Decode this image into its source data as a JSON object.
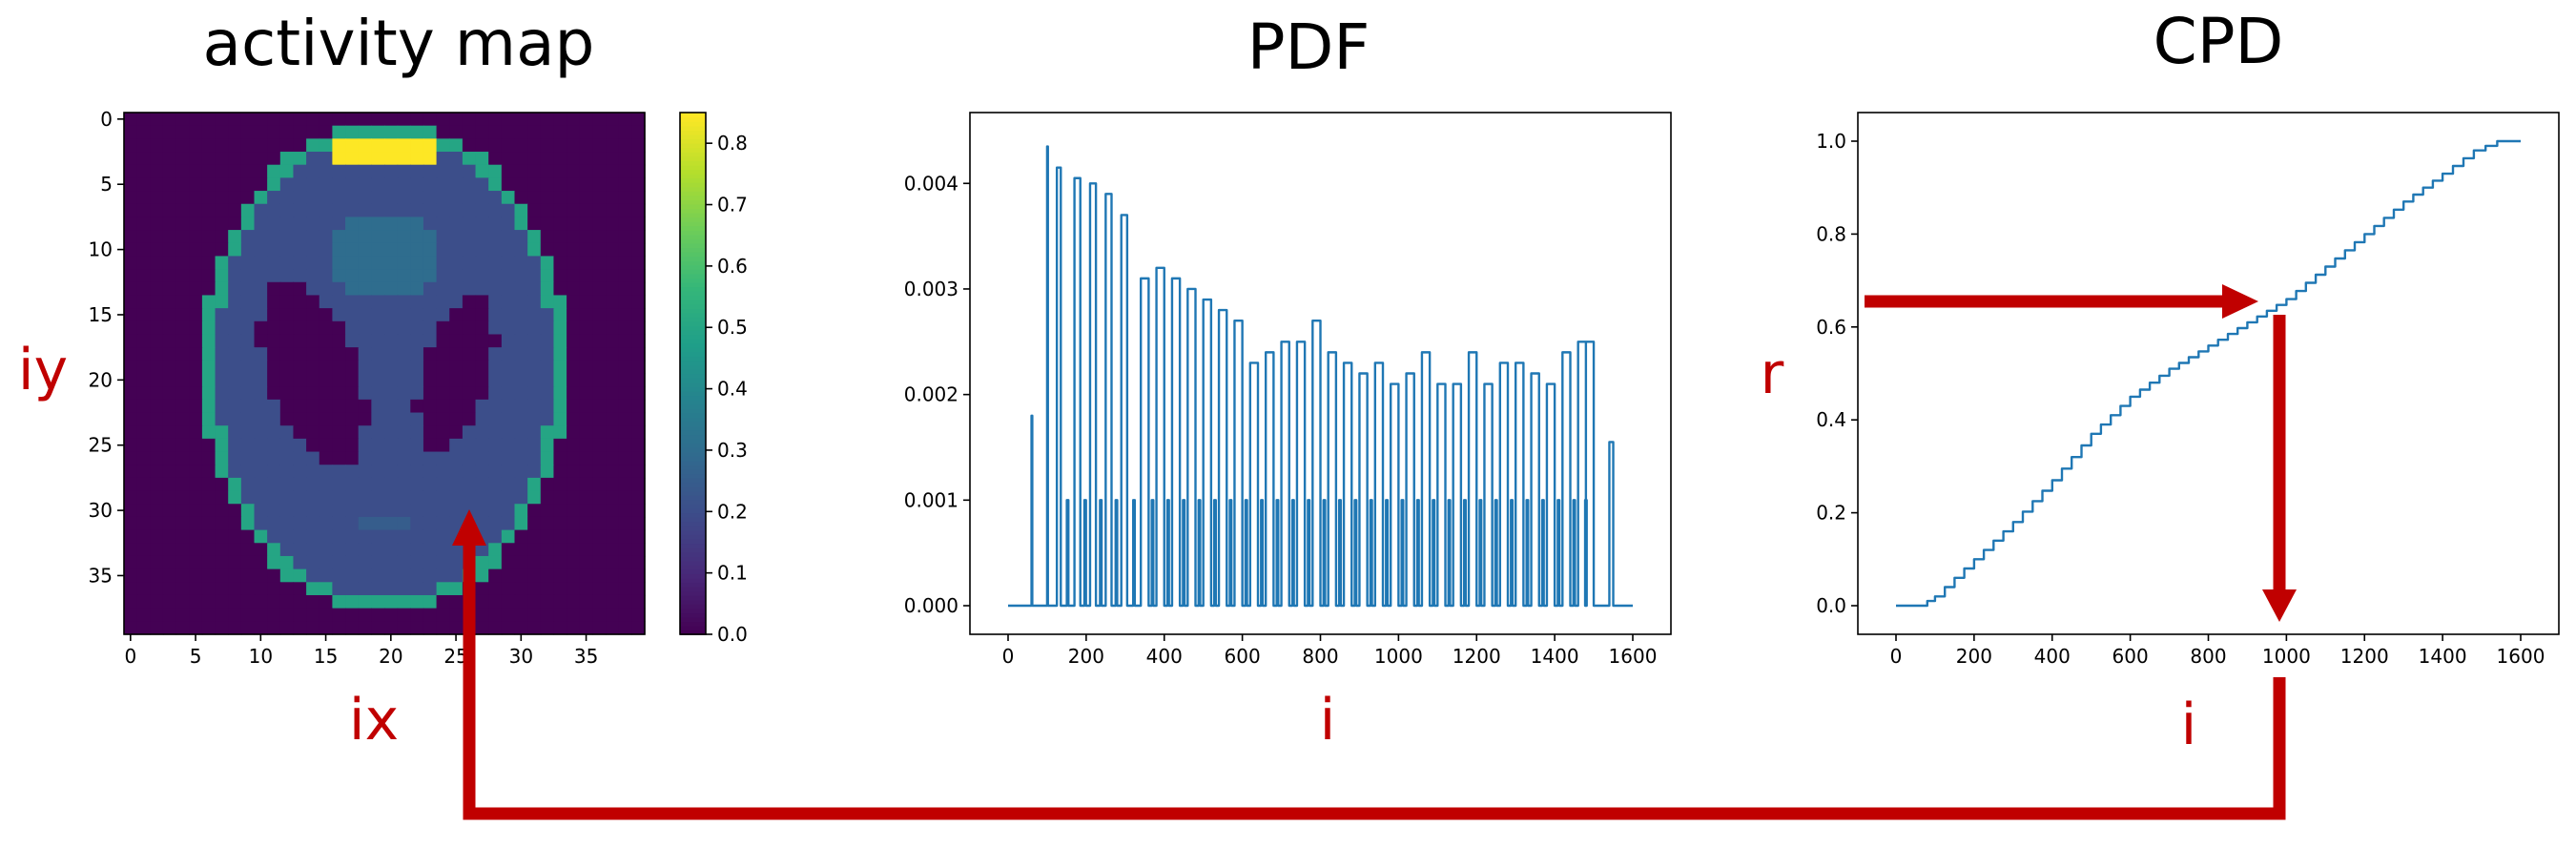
{
  "panels": {
    "activity_map": {
      "title": "activity map",
      "xlabel": "ix",
      "ylabel": "iy"
    },
    "pdf": {
      "title": "PDF",
      "xlabel": "i"
    },
    "cpd": {
      "title": "CPD",
      "xlabel": "i",
      "ylabel": "r"
    }
  },
  "flow_arrows_color": "#c00000",
  "chart_data": [
    {
      "type": "heatmap",
      "title": "activity map",
      "xlabel": "ix",
      "ylabel": "iy",
      "grid_size": [
        40,
        40
      ],
      "x_ticks": [
        0,
        5,
        10,
        15,
        20,
        25,
        30,
        35
      ],
      "y_ticks": [
        0,
        5,
        10,
        15,
        20,
        25,
        30,
        35
      ],
      "colormap": "viridis",
      "colorbar_ticks": [
        0.0,
        0.1,
        0.2,
        0.3,
        0.4,
        0.5,
        0.6,
        0.7,
        0.8
      ],
      "colorbar_range": [
        0.0,
        0.85
      ],
      "regions": [
        {
          "shape": "ellipse",
          "center": [
            20,
            19.5
          ],
          "radii": [
            14,
            19
          ],
          "value": 0.5
        },
        {
          "shape": "ellipse",
          "center": [
            20,
            19.5
          ],
          "radii": [
            13,
            18
          ],
          "value": 0.2
        },
        {
          "shape": "rect",
          "x": [
            16,
            23
          ],
          "y": [
            2,
            3
          ],
          "value": 0.85
        },
        {
          "shape": "ellipse",
          "center": [
            20,
            11
          ],
          "radii": [
            4,
            3.5
          ],
          "value": 0.3
        },
        {
          "shape": "ellipse",
          "center": [
            14.5,
            20
          ],
          "radii": [
            3.5,
            7.5
          ],
          "value": 0.0,
          "tilt": -18
        },
        {
          "shape": "ellipse",
          "center": [
            25.5,
            20
          ],
          "radii": [
            2.5,
            6
          ],
          "value": 0.0,
          "tilt": 18
        },
        {
          "shape": "ellipse",
          "center": [
            20,
            31.5
          ],
          "radii": [
            2,
            1
          ],
          "value": 0.25
        }
      ]
    },
    {
      "type": "line",
      "title": "PDF",
      "xlabel": "i",
      "xlim": [
        0,
        1600
      ],
      "ylim": [
        0,
        0.0044
      ],
      "x_ticks": [
        0,
        200,
        400,
        600,
        800,
        1000,
        1200,
        1400,
        1600
      ],
      "y_ticks": [
        0.0,
        0.001,
        0.002,
        0.003,
        0.004
      ],
      "y_tick_labels": [
        "0.000",
        "0.001",
        "0.002",
        "0.003",
        "0.004"
      ],
      "bands": [
        {
          "x": [
            0,
            55
          ],
          "value": 0.0
        },
        {
          "x": [
            60,
            62
          ],
          "value": 0.0018
        },
        {
          "x": [
            100,
            102
          ],
          "value": 0.00435
        },
        {
          "x": [
            125,
            135
          ],
          "value": 0.00415
        },
        {
          "x": [
            170,
            185
          ],
          "value": 0.00405
        },
        {
          "x": [
            210,
            225
          ],
          "value": 0.004
        },
        {
          "x": [
            250,
            265
          ],
          "value": 0.0039
        },
        {
          "x": [
            290,
            305
          ],
          "value": 0.0037
        },
        {
          "x": [
            340,
            360
          ],
          "value": 0.0031
        },
        {
          "x": [
            380,
            400
          ],
          "value": 0.0032
        },
        {
          "x": [
            420,
            440
          ],
          "value": 0.0031
        },
        {
          "x": [
            460,
            480
          ],
          "value": 0.003
        },
        {
          "x": [
            500,
            520
          ],
          "value": 0.0029
        },
        {
          "x": [
            540,
            560
          ],
          "value": 0.0028
        },
        {
          "x": [
            580,
            600
          ],
          "value": 0.0027
        },
        {
          "x": [
            620,
            640
          ],
          "value": 0.0023
        },
        {
          "x": [
            660,
            680
          ],
          "value": 0.0024
        },
        {
          "x": [
            700,
            720
          ],
          "value": 0.0025
        },
        {
          "x": [
            740,
            760
          ],
          "value": 0.0025
        },
        {
          "x": [
            780,
            800
          ],
          "value": 0.0027
        },
        {
          "x": [
            820,
            840
          ],
          "value": 0.0024
        },
        {
          "x": [
            860,
            880
          ],
          "value": 0.0023
        },
        {
          "x": [
            900,
            920
          ],
          "value": 0.0022
        },
        {
          "x": [
            940,
            960
          ],
          "value": 0.0023
        },
        {
          "x": [
            980,
            1000
          ],
          "value": 0.0021
        },
        {
          "x": [
            1020,
            1040
          ],
          "value": 0.0022
        },
        {
          "x": [
            1060,
            1080
          ],
          "value": 0.0024
        },
        {
          "x": [
            1100,
            1120
          ],
          "value": 0.0021
        },
        {
          "x": [
            1140,
            1160
          ],
          "value": 0.0021
        },
        {
          "x": [
            1180,
            1200
          ],
          "value": 0.0024
        },
        {
          "x": [
            1220,
            1240
          ],
          "value": 0.0021
        },
        {
          "x": [
            1260,
            1280
          ],
          "value": 0.0023
        },
        {
          "x": [
            1300,
            1320
          ],
          "value": 0.0023
        },
        {
          "x": [
            1340,
            1360
          ],
          "value": 0.0022
        },
        {
          "x": [
            1380,
            1400
          ],
          "value": 0.0021
        },
        {
          "x": [
            1420,
            1440
          ],
          "value": 0.0024
        },
        {
          "x": [
            1460,
            1480
          ],
          "value": 0.0025
        },
        {
          "x": [
            1480,
            1500
          ],
          "value": 0.0025
        },
        {
          "x": [
            1540,
            1550
          ],
          "value": 0.00155
        },
        {
          "x": [
            1560,
            1600
          ],
          "value": 0.0
        }
      ],
      "baseline_between_bands": 0.0,
      "plateau_value": 0.001,
      "plateau_range": [
        150,
        1500
      ]
    },
    {
      "type": "line",
      "title": "CPD",
      "xlabel": "i",
      "ylabel": "r",
      "xlim": [
        0,
        1600
      ],
      "ylim": [
        0,
        1.0
      ],
      "x_ticks": [
        0,
        200,
        400,
        600,
        800,
        1000,
        1200,
        1400,
        1600
      ],
      "y_ticks": [
        0.0,
        0.2,
        0.4,
        0.6,
        0.8,
        1.0
      ],
      "y_tick_labels": [
        "0.0",
        "0.2",
        "0.4",
        "0.6",
        "0.8",
        "1.0"
      ],
      "x": [
        0,
        60,
        100,
        150,
        200,
        300,
        400,
        500,
        600,
        700,
        800,
        900,
        1000,
        1100,
        1200,
        1300,
        1400,
        1480,
        1540,
        1600
      ],
      "y": [
        0.0,
        0.0,
        0.02,
        0.06,
        0.1,
        0.18,
        0.27,
        0.37,
        0.45,
        0.51,
        0.56,
        0.61,
        0.66,
        0.73,
        0.8,
        0.87,
        0.93,
        0.98,
        1.0,
        1.0
      ],
      "annotations": [
        {
          "type": "arrow",
          "from": {
            "x": -60,
            "y": 0.64
          },
          "to": {
            "x": 960,
            "y": 0.64
          }
        },
        {
          "type": "arrow",
          "from": {
            "x": 975,
            "y": 0.6
          },
          "to": {
            "x": 975,
            "y": 0.0
          }
        }
      ]
    }
  ]
}
